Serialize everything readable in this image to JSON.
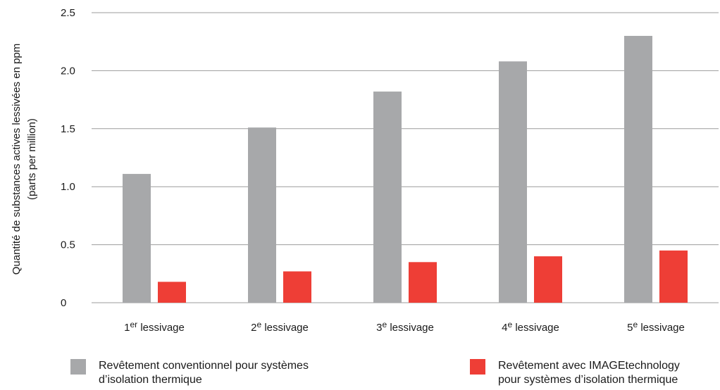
{
  "chart_data": {
    "type": "bar",
    "categories": [
      {
        "main": "1",
        "sup": "er",
        "rest": " lessivage"
      },
      {
        "main": "2",
        "sup": "e",
        "rest": " lessivage"
      },
      {
        "main": "3",
        "sup": "e",
        "rest": " lessivage"
      },
      {
        "main": "4",
        "sup": "e",
        "rest": " lessivage"
      },
      {
        "main": "5",
        "sup": "e",
        "rest": " lessivage"
      }
    ],
    "series": [
      {
        "name": "Revêtement conventionnel pour systèmes d’isolation thermique",
        "color": "#a7a8aa",
        "values": [
          1.11,
          1.51,
          1.82,
          2.08,
          2.3
        ]
      },
      {
        "name": "Revêtement avec IMAGEtechnology pour systèmes d’isolation thermique",
        "color": "#ee3e36",
        "values": [
          0.18,
          0.27,
          0.35,
          0.4,
          0.45
        ]
      }
    ],
    "ylabel": "Quantité de substances actives lessivées en ppm (parts per million)",
    "ylim": [
      0,
      2.5
    ],
    "yticks": [
      "0",
      "0.5",
      "1.0",
      "1.5",
      "2.0",
      "2.5"
    ],
    "grid": true
  },
  "ylabel_lines": [
    "Quantité de substances actives lessivées en ppm",
    "(parts per million)"
  ],
  "legend": [
    {
      "lines": [
        "Revêtement conventionnel pour systèmes",
        "d’isolation thermique"
      ],
      "color": "#a7a8aa"
    },
    {
      "lines": [
        "Revêtement avec IMAGEtechnology",
        "pour systèmes d’isolation thermique"
      ],
      "color": "#ee3e36"
    }
  ]
}
